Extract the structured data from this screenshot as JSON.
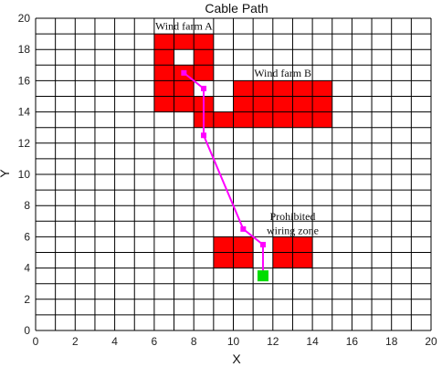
{
  "chart_data": {
    "type": "line",
    "title": "Cable Path",
    "xlabel": "X",
    "ylabel": "Y",
    "xlim": [
      0,
      20
    ],
    "ylim": [
      0,
      20
    ],
    "xticks": [
      0,
      2,
      4,
      6,
      8,
      10,
      12,
      14,
      16,
      18,
      20
    ],
    "yticks": [
      0,
      2,
      4,
      6,
      8,
      10,
      12,
      14,
      16,
      18,
      20
    ],
    "grid": true,
    "grid_step": 1,
    "colors": {
      "grid": "#000000",
      "region": "#ff0000",
      "path": "#ff00ff",
      "endpoint": "#00dd00"
    },
    "regions": [
      {
        "name": "Wind farm A",
        "cells": [
          [
            6,
            18
          ],
          [
            7,
            18
          ],
          [
            8,
            18
          ],
          [
            6,
            17
          ],
          [
            8,
            17
          ],
          [
            6,
            16
          ],
          [
            7,
            16
          ],
          [
            8,
            16
          ],
          [
            6,
            15
          ],
          [
            7,
            15
          ],
          [
            6,
            14
          ],
          [
            7,
            14
          ]
        ]
      },
      {
        "name": "Wind farm B",
        "cells": [
          [
            8,
            14
          ],
          [
            8,
            13
          ],
          [
            9,
            13
          ],
          [
            10,
            15
          ],
          [
            10,
            14
          ],
          [
            10,
            13
          ],
          [
            11,
            15
          ],
          [
            11,
            14
          ],
          [
            11,
            13
          ],
          [
            12,
            15
          ],
          [
            12,
            14
          ],
          [
            12,
            13
          ],
          [
            13,
            15
          ],
          [
            13,
            14
          ],
          [
            13,
            13
          ],
          [
            14,
            15
          ],
          [
            14,
            14
          ],
          [
            14,
            13
          ]
        ]
      },
      {
        "name": "Prohibited wiring zone",
        "cells": [
          [
            9,
            5
          ],
          [
            9,
            4
          ],
          [
            10,
            5
          ],
          [
            10,
            4
          ],
          [
            12,
            5
          ],
          [
            12,
            4
          ],
          [
            13,
            5
          ],
          [
            13,
            4
          ]
        ]
      }
    ],
    "annotations": [
      {
        "text": "Wind farm A",
        "x": 7.5,
        "y": 19.5
      },
      {
        "text": "Wind farm B",
        "x": 12.5,
        "y": 16.5
      },
      {
        "text": "Prohibited",
        "x": 13.0,
        "y": 7.3
      },
      {
        "text": "wiring zone",
        "x": 13.0,
        "y": 6.4
      }
    ],
    "series": [
      {
        "x": [
          7.5,
          8.5,
          8.5,
          10.5,
          11.5,
          11.5
        ],
        "y": [
          16.5,
          15.5,
          12.5,
          6.5,
          5.5,
          3.5
        ]
      }
    ],
    "endpoint": {
      "x": 11.5,
      "y": 3.5
    }
  }
}
